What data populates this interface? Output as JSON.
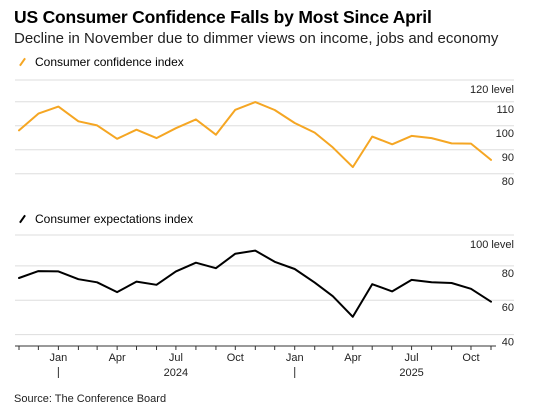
{
  "title": "US Consumer Confidence Falls by Most Since April",
  "subtitle": "Decline in November due to dimmer views on income, jobs and economy",
  "source": "Source: The Conference Board",
  "chart_data": [
    {
      "type": "line",
      "title": "",
      "legend": "Consumer confidence index",
      "color": "#f5a623",
      "ylabel": "120 level",
      "ylim": [
        77,
        122
      ],
      "yticks": [
        80,
        90,
        100,
        110
      ],
      "ytick_labels": [
        "80",
        "90",
        "100",
        "110"
      ],
      "grid": true,
      "x": [
        "2023-11",
        "2023-12",
        "2024-01",
        "2024-02",
        "2024-03",
        "2024-04",
        "2024-05",
        "2024-06",
        "2024-07",
        "2024-08",
        "2024-09",
        "2024-10",
        "2024-11",
        "2024-12",
        "2025-01",
        "2025-02",
        "2025-03",
        "2025-04",
        "2025-05",
        "2025-06",
        "2025-07",
        "2025-08",
        "2025-09",
        "2025-10",
        "2025-11"
      ],
      "series": [
        {
          "name": "Consumer confidence index",
          "values": [
            101.0,
            108.0,
            110.9,
            104.8,
            103.1,
            97.5,
            101.3,
            97.8,
            101.9,
            105.6,
            99.2,
            109.6,
            112.8,
            109.5,
            104.1,
            100.1,
            93.9,
            85.7,
            98.4,
            95.2,
            98.7,
            97.8,
            95.6,
            95.5,
            88.7
          ]
        }
      ]
    },
    {
      "type": "line",
      "title": "",
      "legend": "Consumer expectations index",
      "color": "#000000",
      "ylabel": "100 level",
      "ylim": [
        38,
        102
      ],
      "yticks": [
        40,
        60,
        80
      ],
      "ytick_labels": [
        "40",
        "60",
        "80"
      ],
      "grid": true,
      "x": [
        "2023-11",
        "2023-12",
        "2024-01",
        "2024-02",
        "2024-03",
        "2024-04",
        "2024-05",
        "2024-06",
        "2024-07",
        "2024-08",
        "2024-09",
        "2024-10",
        "2024-11",
        "2024-12",
        "2025-01",
        "2025-02",
        "2025-03",
        "2025-04",
        "2025-05",
        "2025-06",
        "2025-07",
        "2025-08",
        "2025-09",
        "2025-10",
        "2025-11"
      ],
      "series": [
        {
          "name": "Consumer expectations index",
          "values": [
            77,
            81,
            80.8,
            76.3,
            74.5,
            68.8,
            74.9,
            73,
            80.8,
            85.9,
            82.7,
            91.1,
            92.9,
            86.4,
            82.2,
            74.3,
            66.4,
            54.4,
            73.4,
            69.2,
            75.9,
            74.5,
            74.1,
            70.7,
            63.2
          ]
        }
      ]
    }
  ],
  "x_axis": {
    "month_labels": [
      {
        "label": "Jan",
        "date": "2024-01"
      },
      {
        "label": "Apr",
        "date": "2024-04"
      },
      {
        "label": "Jul",
        "date": "2024-07"
      },
      {
        "label": "Oct",
        "date": "2024-10"
      },
      {
        "label": "Jan",
        "date": "2025-01"
      },
      {
        "label": "Apr",
        "date": "2025-04"
      },
      {
        "label": "Jul",
        "date": "2025-07"
      },
      {
        "label": "Oct",
        "date": "2025-10"
      }
    ],
    "year_labels": [
      {
        "label": "2024",
        "date": "2024-07"
      },
      {
        "label": "2025",
        "date": "2025-07"
      }
    ],
    "year_separators": [
      "2024-01",
      "2025-01"
    ]
  },
  "colors": {
    "confidence": "#f5a623",
    "expectations": "#000000",
    "grid": "#dddddd",
    "axis": "#333333"
  }
}
